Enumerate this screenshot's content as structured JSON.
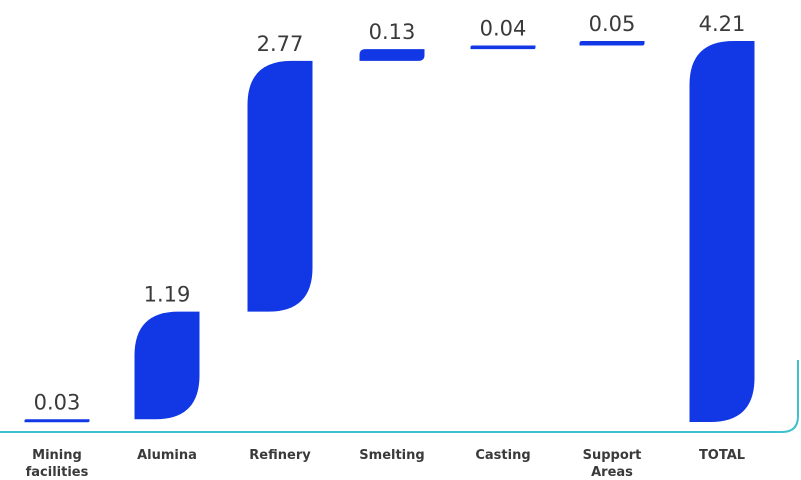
{
  "chart_data": {
    "type": "bar",
    "subtype": "waterfall",
    "categories": [
      [
        "Mining",
        "facilities"
      ],
      [
        "Alumina"
      ],
      [
        "Refinery"
      ],
      [
        "Smelting"
      ],
      [
        "Casting"
      ],
      [
        "Support",
        "Areas"
      ],
      [
        "TOTAL"
      ]
    ],
    "values": [
      0.03,
      1.19,
      2.77,
      0.13,
      0.04,
      0.05,
      4.21
    ],
    "value_labels": [
      "0.03",
      "1.19",
      "2.77",
      "0.13",
      "0.04",
      "0.05",
      "4.21"
    ],
    "total_index": 6,
    "ylim": [
      0,
      4.21
    ],
    "title": "",
    "xlabel": "",
    "ylabel": "",
    "grid": false,
    "legend": "none",
    "colors": {
      "bar": "#1238e6",
      "frame": "#3fc0d0",
      "text": "#3a3a3a"
    }
  }
}
